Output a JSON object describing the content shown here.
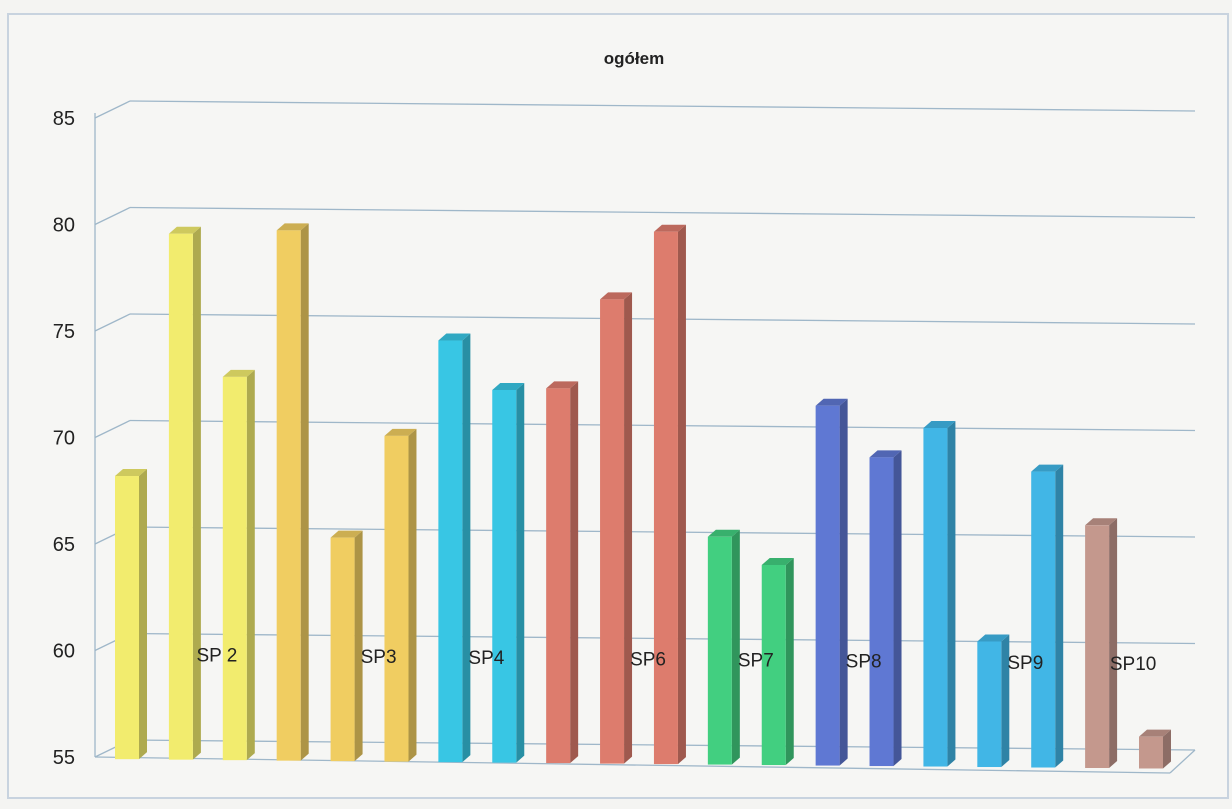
{
  "chart_data": {
    "type": "bar",
    "title": "ogółem",
    "ylim": [
      55,
      85
    ],
    "y_ticks": [
      "55",
      "60",
      "65",
      "70",
      "75",
      "80",
      "85"
    ],
    "grid": true,
    "style": "3d",
    "categories": [
      "",
      "SP 2",
      "",
      "",
      "SP3",
      "",
      "SP4",
      "",
      "",
      "SP6",
      "",
      "SP7",
      "",
      "SP8",
      "",
      "",
      "SP9",
      "",
      "SP10",
      ""
    ],
    "values": [
      68.2,
      79.6,
      72.9,
      79.8,
      65.4,
      70.2,
      74.7,
      72.4,
      72.5,
      76.7,
      79.9,
      65.6,
      64.3,
      71.8,
      69.4,
      70.8,
      60.8,
      68.8,
      66.3,
      56.4
    ],
    "colors": [
      "#f2ec6e",
      "#f2ec6e",
      "#f2ec6e",
      "#f0cd61",
      "#f0cd61",
      "#f0cd61",
      "#38c6e4",
      "#38c6e4",
      "#dd7c6d",
      "#dd7c6d",
      "#dd7c6d",
      "#42cf80",
      "#42cf80",
      "#5f78d3",
      "#5f78d3",
      "#41b6e6",
      "#41b6e6",
      "#41b6e6",
      "#c4988d",
      "#c4988d"
    ]
  }
}
